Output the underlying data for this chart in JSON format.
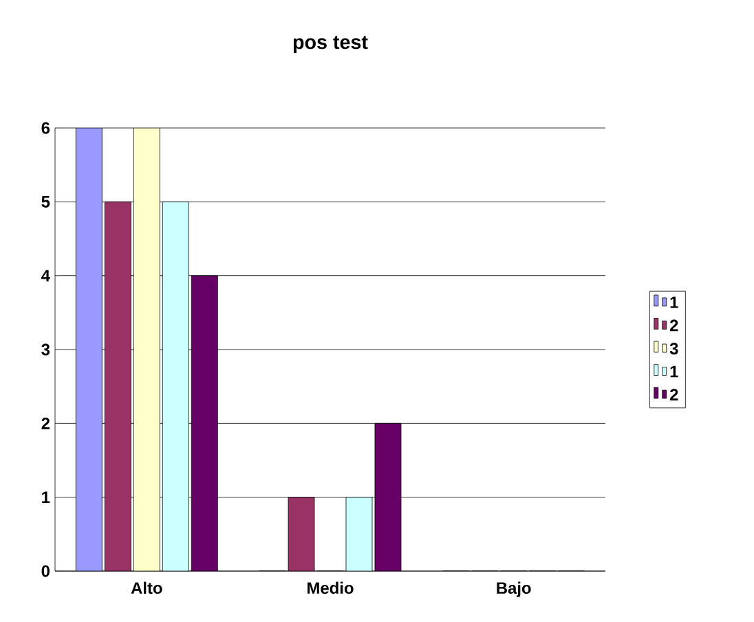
{
  "chart_data": {
    "type": "bar",
    "title": "pos test",
    "categories": [
      "Alto",
      "Medio",
      "Bajo"
    ],
    "series": [
      {
        "name": "1",
        "color": "#9999ff",
        "values": [
          6,
          0,
          0
        ]
      },
      {
        "name": "2",
        "color": "#993366",
        "values": [
          5,
          1,
          0
        ]
      },
      {
        "name": "3",
        "color": "#ffffcc",
        "values": [
          6,
          0,
          0
        ]
      },
      {
        "name": "1",
        "color": "#ccffff",
        "values": [
          5,
          1,
          0
        ]
      },
      {
        "name": "2",
        "color": "#660066",
        "values": [
          4,
          2,
          0
        ]
      }
    ],
    "ylim": [
      0,
      6
    ],
    "yticks": [
      0,
      1,
      2,
      3,
      4,
      5,
      6
    ],
    "grid": "y",
    "legend": "right"
  }
}
